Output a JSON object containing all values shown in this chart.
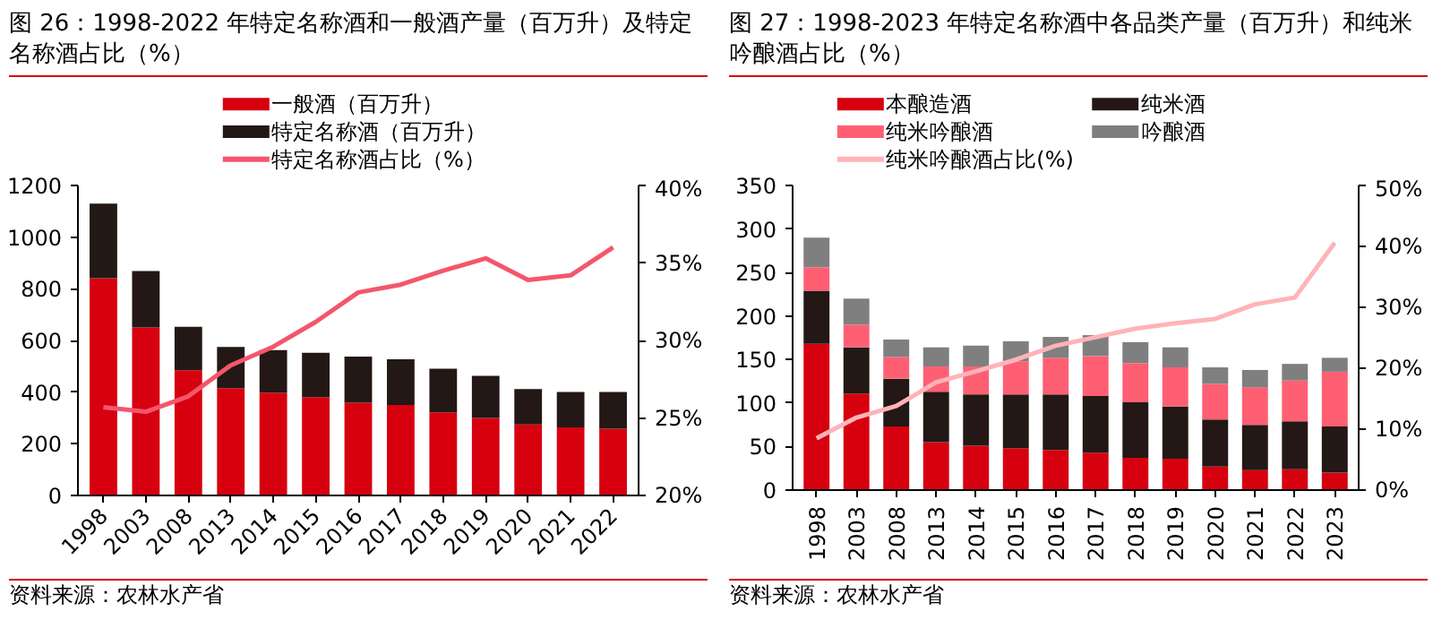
{
  "chart_data": [
    {
      "type": "bar",
      "title": "图 26：1998-2022 年特定名称酒和一般酒产量（百万升）及特定名称酒占比（%）",
      "categories": [
        "1998",
        "2003",
        "2008",
        "2013",
        "2014",
        "2015",
        "2016",
        "2017",
        "2018",
        "2019",
        "2020",
        "2021",
        "2022"
      ],
      "stacked": true,
      "legend": "top",
      "ylim": [
        0,
        1200
      ],
      "yticks": [
        0,
        200,
        400,
        600,
        800,
        1000,
        1200
      ],
      "y2lim": [
        20,
        40
      ],
      "y2ticks": [
        {
          "value": 20,
          "label": "20%"
        },
        {
          "value": 25,
          "label": "25%"
        },
        {
          "value": 30,
          "label": "30%"
        },
        {
          "value": 35,
          "label": "35%"
        },
        {
          "value": 40,
          "label": "40%"
        }
      ],
      "series": [
        {
          "name": "一般酒（百万升）",
          "color": "#d7000f",
          "values": [
            841,
            650,
            485,
            415,
            398,
            381,
            359,
            350,
            322,
            300,
            275,
            264,
            258
          ]
        },
        {
          "name": "特定名称酒（百万升）",
          "color": "#231815",
          "values": [
            289,
            219,
            168,
            160,
            165,
            171,
            179,
            177,
            169,
            163,
            137,
            137,
            143
          ]
        },
        {
          "name": "特定名称酒占比（%）",
          "type": "line",
          "axis": "y2",
          "color": "#f4566c",
          "values": [
            25.7,
            25.4,
            26.4,
            28.4,
            29.6,
            31.2,
            33.1,
            33.6,
            34.5,
            35.3,
            33.9,
            34.2,
            36.0
          ]
        }
      ],
      "annotations": [
        "资料来源：农林水产省"
      ]
    },
    {
      "type": "bar",
      "title": "图 27：1998-2023 年特定名称酒中各品类产量（百万升）和纯米吟酿酒占比（%）",
      "categories": [
        "1998",
        "2003",
        "2008",
        "2013",
        "2014",
        "2015",
        "2016",
        "2017",
        "2018",
        "2019",
        "2020",
        "2021",
        "2022",
        "2023"
      ],
      "stacked": true,
      "legend": "top",
      "ylim": [
        0,
        350
      ],
      "yticks": [
        0,
        50,
        100,
        150,
        200,
        250,
        300,
        350
      ],
      "y2lim": [
        0,
        50
      ],
      "y2ticks": [
        {
          "value": 0,
          "label": "0%"
        },
        {
          "value": 10,
          "label": "10%"
        },
        {
          "value": 20,
          "label": "20%"
        },
        {
          "value": 30,
          "label": "30%"
        },
        {
          "value": 40,
          "label": "40%"
        },
        {
          "value": 50,
          "label": "50%"
        }
      ],
      "series": [
        {
          "name": "本酿造酒",
          "color": "#d7000f",
          "values": [
            168,
            111,
            73,
            55,
            51,
            48,
            46,
            43,
            37,
            36,
            27,
            23,
            24,
            20
          ]
        },
        {
          "name": "纯米酒",
          "color": "#231815",
          "values": [
            61,
            53,
            55,
            58,
            59,
            62,
            64,
            65,
            64,
            60,
            54,
            52,
            55,
            53
          ]
        },
        {
          "name": "纯米吟酿酒",
          "color": "#ff5f73",
          "values": [
            27,
            26,
            25,
            29,
            32,
            38,
            42,
            46,
            45,
            45,
            41,
            43,
            47,
            63
          ]
        },
        {
          "name": "吟酿酒",
          "color": "#7f7f7f",
          "values": [
            34,
            30,
            20,
            22,
            24,
            23,
            24,
            24,
            24,
            23,
            19,
            20,
            19,
            16
          ]
        },
        {
          "name": "纯米吟酿酒占比(%)",
          "type": "line",
          "axis": "y2",
          "color": "#ffb3b8",
          "values": [
            8.5,
            11.9,
            13.8,
            17.7,
            19.5,
            21.4,
            23.7,
            25.1,
            26.5,
            27.4,
            28.1,
            30.5,
            31.6,
            40.6
          ]
        }
      ],
      "annotations": [
        "资料来源：农林水产省"
      ]
    }
  ]
}
